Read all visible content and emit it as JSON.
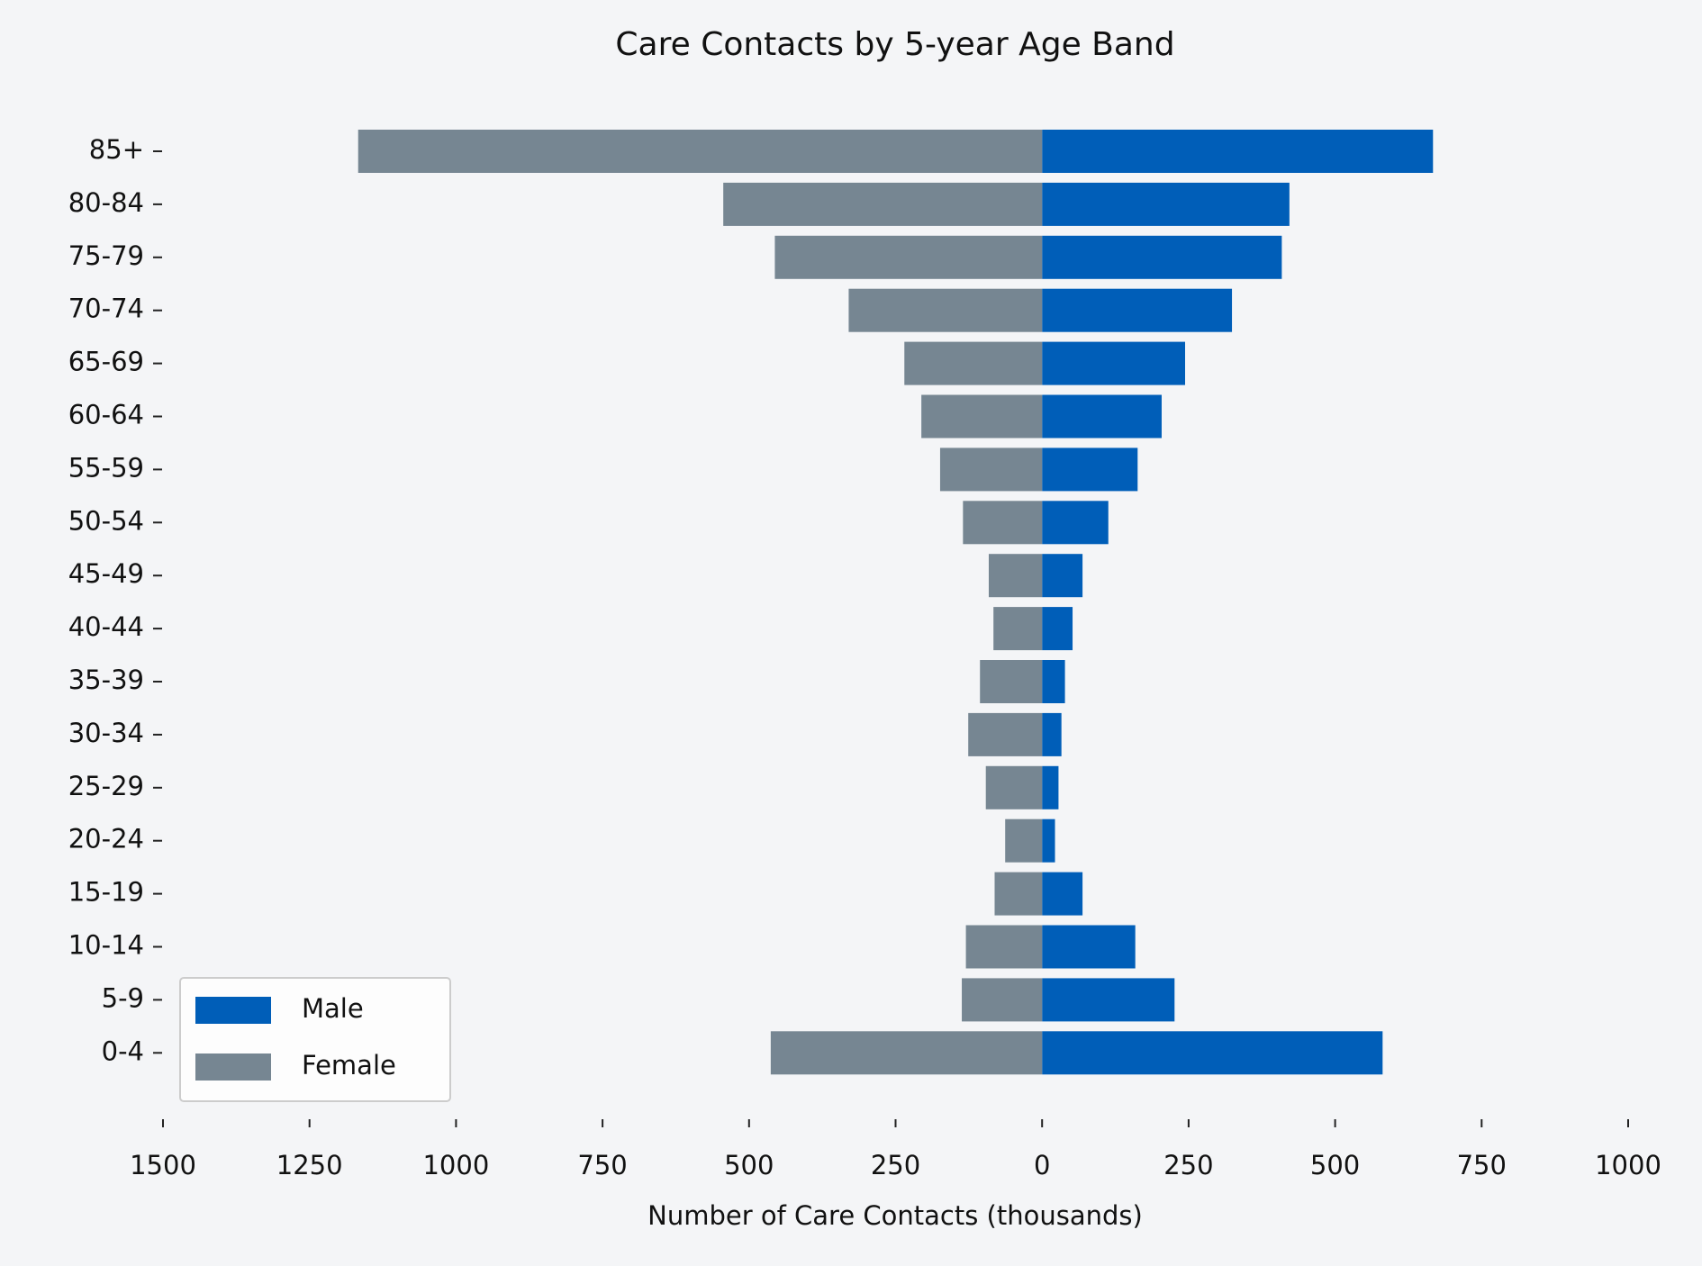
{
  "chart_data": {
    "type": "pyramid",
    "title": "Care Contacts by 5-year Age Band",
    "xlabel": "Number of Care Contacts (thousands)",
    "categories": [
      "0-4",
      "5-9",
      "10-14",
      "15-19",
      "20-24",
      "25-29",
      "30-34",
      "35-39",
      "40-44",
      "45-49",
      "50-54",
      "55-59",
      "60-64",
      "65-69",
      "70-74",
      "75-79",
      "80-84",
      "85+"
    ],
    "series": [
      {
        "name": "Male",
        "color": "#005eb8",
        "values": [
          581,
          226,
          159,
          69,
          22,
          28,
          33,
          39,
          52,
          69,
          113,
          163,
          204,
          244,
          324,
          409,
          422,
          667
        ]
      },
      {
        "name": "Female",
        "color": "#768692",
        "values": [
          -463,
          -137,
          -130,
          -81,
          -63,
          -96,
          -126,
          -106,
          -83,
          -91,
          -135,
          -174,
          -206,
          -235,
          -330,
          -456,
          -544,
          -1167
        ]
      }
    ],
    "xlim": [
      -1500,
      1000
    ],
    "xticks": [
      {
        "value": -1500,
        "label": "1500"
      },
      {
        "value": -1250,
        "label": "1250"
      },
      {
        "value": -1000,
        "label": "1000"
      },
      {
        "value": -750,
        "label": "750"
      },
      {
        "value": -500,
        "label": "500"
      },
      {
        "value": -250,
        "label": "250"
      },
      0,
      250,
      500,
      750,
      1000
    ],
    "legend": "lower left"
  }
}
